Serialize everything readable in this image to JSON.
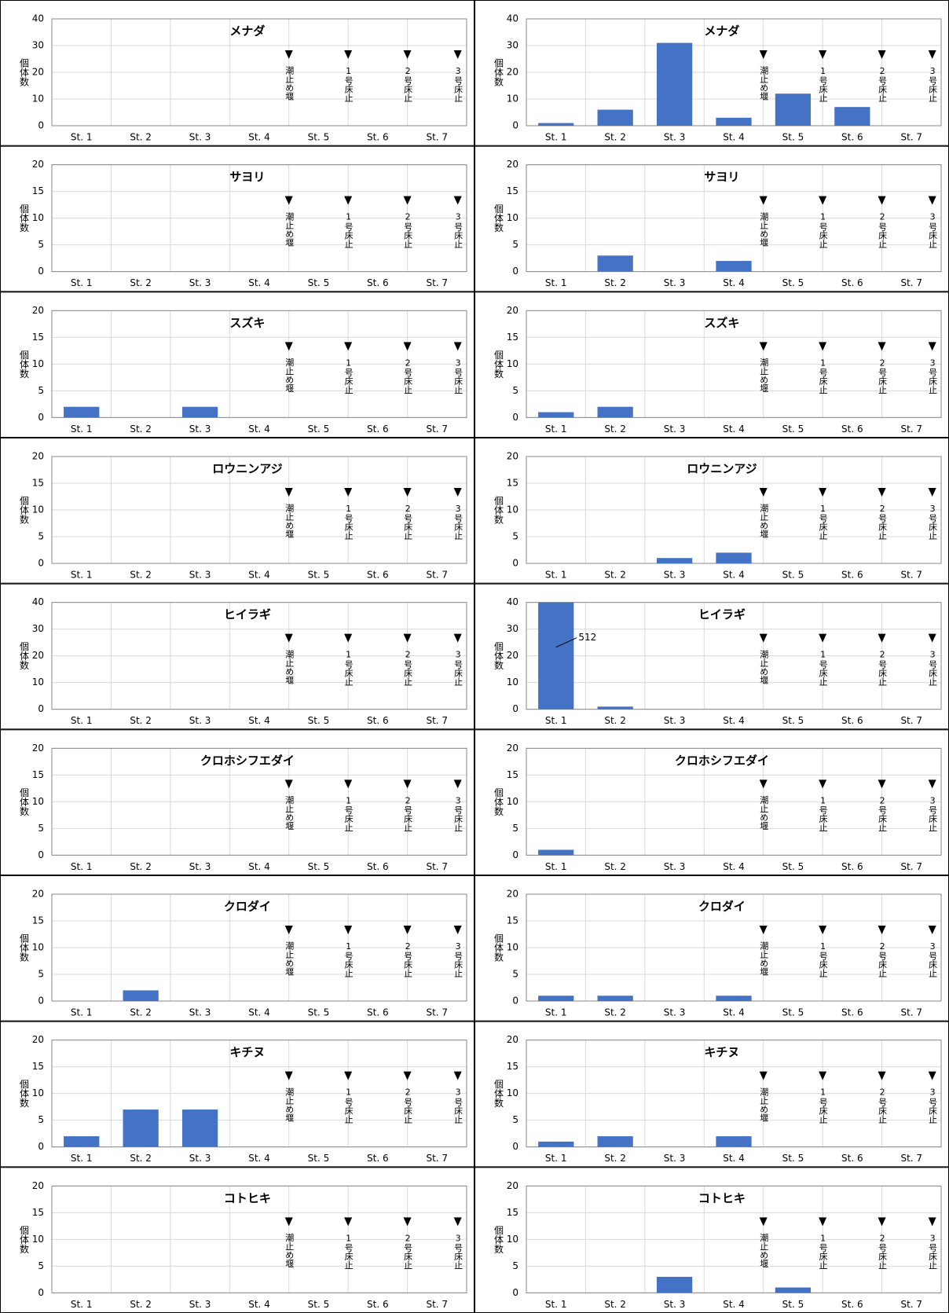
{
  "chart_data": [
    {
      "type": "bar",
      "title": "メナダ",
      "ylabel": "個体数",
      "categories": [
        "St. 1",
        "St. 2",
        "St. 3",
        "St. 4",
        "St. 5",
        "St. 6",
        "St. 7"
      ],
      "values": [
        0,
        0,
        0,
        0,
        0,
        0,
        0
      ],
      "ylim": [
        0,
        40
      ],
      "yticks": [
        0,
        10,
        20,
        30,
        40
      ],
      "color": "#4472c4",
      "grid": true,
      "annotations": [
        "潮止め堰",
        "1号床止",
        "2号床止",
        "3号床止"
      ]
    },
    {
      "type": "bar",
      "title": "サヨリ",
      "ylabel": "個体数",
      "categories": [
        "St. 1",
        "St. 2",
        "St. 3",
        "St. 4",
        "St. 5",
        "St. 6",
        "St. 7"
      ],
      "values": [
        0,
        0,
        0,
        0,
        0,
        0,
        0
      ],
      "ylim": [
        0,
        20
      ],
      "yticks": [
        0,
        5,
        10,
        15,
        20
      ],
      "color": "#4472c4",
      "grid": true,
      "annotations": [
        "潮止め堰",
        "1号床止",
        "2号床止",
        "3号床止"
      ]
    },
    {
      "type": "bar",
      "title": "スズキ",
      "ylabel": "個体数",
      "categories": [
        "St. 1",
        "St. 2",
        "St. 3",
        "St. 4",
        "St. 5",
        "St. 6",
        "St. 7"
      ],
      "values": [
        2,
        0,
        2,
        0,
        0,
        0,
        0
      ],
      "ylim": [
        0,
        20
      ],
      "yticks": [
        0,
        5,
        10,
        15,
        20
      ],
      "color": "#4472c4",
      "grid": true,
      "annotations": [
        "潮止め堰",
        "1号床止",
        "2号床止",
        "3号床止"
      ]
    },
    {
      "type": "bar",
      "title": "ロウニンアジ",
      "ylabel": "個体数",
      "categories": [
        "St. 1",
        "St. 2",
        "St. 3",
        "St. 4",
        "St. 5",
        "St. 6",
        "St. 7"
      ],
      "values": [
        0,
        0,
        0,
        0,
        0,
        0,
        0
      ],
      "ylim": [
        0,
        20
      ],
      "yticks": [
        0,
        5,
        10,
        15,
        20
      ],
      "color": "#4472c4",
      "grid": true,
      "annotations": [
        "潮止め堰",
        "1号床止",
        "2号床止",
        "3号床止"
      ]
    },
    {
      "type": "bar",
      "title": "ヒイラギ",
      "ylabel": "個体数",
      "categories": [
        "St. 1",
        "St. 2",
        "St. 3",
        "St. 4",
        "St. 5",
        "St. 6",
        "St. 7"
      ],
      "values": [
        0,
        0,
        0,
        0,
        0,
        0,
        0
      ],
      "ylim": [
        0,
        40
      ],
      "yticks": [
        0,
        10,
        20,
        30,
        40
      ],
      "color": "#4472c4",
      "grid": true,
      "annotations": [
        "潮止め堰",
        "1号床止",
        "2号床止",
        "3号床止"
      ]
    },
    {
      "type": "bar",
      "title": "クロホシフエダイ",
      "ylabel": "個体数",
      "categories": [
        "St. 1",
        "St. 2",
        "St. 3",
        "St. 4",
        "St. 5",
        "St. 6",
        "St. 7"
      ],
      "values": [
        0,
        0,
        0,
        0,
        0,
        0,
        0
      ],
      "ylim": [
        0,
        20
      ],
      "yticks": [
        0,
        5,
        10,
        15,
        20
      ],
      "color": "#4472c4",
      "grid": true,
      "annotations": [
        "潮止め堰",
        "1号床止",
        "2号床止",
        "3号床止"
      ]
    },
    {
      "type": "bar",
      "title": "クロダイ",
      "ylabel": "個体数",
      "categories": [
        "St. 1",
        "St. 2",
        "St. 3",
        "St. 4",
        "St. 5",
        "St. 6",
        "St. 7"
      ],
      "values": [
        0,
        2,
        0,
        0,
        0,
        0,
        0
      ],
      "ylim": [
        0,
        20
      ],
      "yticks": [
        0,
        5,
        10,
        15,
        20
      ],
      "color": "#4472c4",
      "grid": true,
      "annotations": [
        "潮止め堰",
        "1号床止",
        "2号床止",
        "3号床止"
      ]
    },
    {
      "type": "bar",
      "title": "キチヌ",
      "ylabel": "個体数",
      "categories": [
        "St. 1",
        "St. 2",
        "St. 3",
        "St. 4",
        "St. 5",
        "St. 6",
        "St. 7"
      ],
      "values": [
        2,
        7,
        7,
        0,
        0,
        0,
        0
      ],
      "ylim": [
        0,
        20
      ],
      "yticks": [
        0,
        5,
        10,
        15,
        20
      ],
      "color": "#4472c4",
      "grid": true,
      "annotations": [
        "潮止め堰",
        "1号床止",
        "2号床止",
        "3号床止"
      ]
    },
    {
      "type": "bar",
      "title": "コトヒキ",
      "ylabel": "個体数",
      "categories": [
        "St. 1",
        "St. 2",
        "St. 3",
        "St. 4",
        "St. 5",
        "St. 6",
        "St. 7"
      ],
      "values": [
        0,
        0,
        0,
        0,
        0,
        0,
        0
      ],
      "ylim": [
        0,
        20
      ],
      "yticks": [
        0,
        5,
        10,
        15,
        20
      ],
      "color": "#4472c4",
      "grid": true,
      "annotations": [
        "潮止め堰",
        "1号床止",
        "2号床止",
        "3号床止"
      ]
    },
    {
      "type": "bar",
      "title": "メナダ",
      "ylabel": "個体数",
      "categories": [
        "St. 1",
        "St. 2",
        "St. 3",
        "St. 4",
        "St. 5",
        "St. 6",
        "St. 7"
      ],
      "values": [
        1,
        6,
        31,
        3,
        12,
        7,
        0
      ],
      "ylim": [
        0,
        40
      ],
      "yticks": [
        0,
        10,
        20,
        30,
        40
      ],
      "color": "#4472c4",
      "grid": true,
      "annotations": [
        "潮止め堰",
        "1号床止",
        "2号床止",
        "3号床止"
      ]
    },
    {
      "type": "bar",
      "title": "サヨリ",
      "ylabel": "個体数",
      "categories": [
        "St. 1",
        "St. 2",
        "St. 3",
        "St. 4",
        "St. 5",
        "St. 6",
        "St. 7"
      ],
      "values": [
        0,
        3,
        0,
        2,
        0,
        0,
        0
      ],
      "ylim": [
        0,
        20
      ],
      "yticks": [
        0,
        5,
        10,
        15,
        20
      ],
      "color": "#4472c4",
      "grid": true,
      "annotations": [
        "潮止め堰",
        "1号床止",
        "2号床止",
        "3号床止"
      ]
    },
    {
      "type": "bar",
      "title": "スズキ",
      "ylabel": "個体数",
      "categories": [
        "St. 1",
        "St. 2",
        "St. 3",
        "St. 4",
        "St. 5",
        "St. 6",
        "St. 7"
      ],
      "values": [
        1,
        2,
        0,
        0,
        0,
        0,
        0
      ],
      "ylim": [
        0,
        20
      ],
      "yticks": [
        0,
        5,
        10,
        15,
        20
      ],
      "color": "#4472c4",
      "grid": true,
      "annotations": [
        "潮止め堰",
        "1号床止",
        "2号床止",
        "3号床止"
      ]
    },
    {
      "type": "bar",
      "title": "ロウニンアジ",
      "ylabel": "個体数",
      "categories": [
        "St. 1",
        "St. 2",
        "St. 3",
        "St. 4",
        "St. 5",
        "St. 6",
        "St. 7"
      ],
      "values": [
        0,
        0,
        1,
        2,
        0,
        0,
        0
      ],
      "ylim": [
        0,
        20
      ],
      "yticks": [
        0,
        5,
        10,
        15,
        20
      ],
      "color": "#4472c4",
      "grid": true,
      "annotations": [
        "潮止め堰",
        "1号床止",
        "2号床止",
        "3号床止"
      ]
    },
    {
      "type": "bar",
      "title": "ヒイラギ",
      "ylabel": "個体数",
      "categories": [
        "St. 1",
        "St. 2",
        "St. 3",
        "St. 4",
        "St. 5",
        "St. 6",
        "St. 7"
      ],
      "values": [
        512,
        1,
        0,
        0,
        0,
        0,
        0
      ],
      "value_labels": [
        "512",
        null,
        null,
        null,
        null,
        null,
        null
      ],
      "ylim": [
        0,
        40
      ],
      "yticks": [
        0,
        10,
        20,
        30,
        40
      ],
      "color": "#4472c4",
      "grid": true,
      "annotations": [
        "潮止め堰",
        "1号床止",
        "2号床止",
        "3号床止"
      ]
    },
    {
      "type": "bar",
      "title": "クロホシフエダイ",
      "ylabel": "個体数",
      "categories": [
        "St. 1",
        "St. 2",
        "St. 3",
        "St. 4",
        "St. 5",
        "St. 6",
        "St. 7"
      ],
      "values": [
        1,
        0,
        0,
        0,
        0,
        0,
        0
      ],
      "ylim": [
        0,
        20
      ],
      "yticks": [
        0,
        5,
        10,
        15,
        20
      ],
      "color": "#4472c4",
      "grid": true,
      "annotations": [
        "潮止め堰",
        "1号床止",
        "2号床止",
        "3号床止"
      ]
    },
    {
      "type": "bar",
      "title": "クロダイ",
      "ylabel": "個体数",
      "categories": [
        "St. 1",
        "St. 2",
        "St. 3",
        "St. 4",
        "St. 5",
        "St. 6",
        "St. 7"
      ],
      "values": [
        1,
        1,
        0,
        1,
        0,
        0,
        0
      ],
      "ylim": [
        0,
        20
      ],
      "yticks": [
        0,
        5,
        10,
        15,
        20
      ],
      "color": "#4472c4",
      "grid": true,
      "annotations": [
        "潮止め堰",
        "1号床止",
        "2号床止",
        "3号床止"
      ]
    },
    {
      "type": "bar",
      "title": "キチヌ",
      "ylabel": "個体数",
      "categories": [
        "St. 1",
        "St. 2",
        "St. 3",
        "St. 4",
        "St. 5",
        "St. 6",
        "St. 7"
      ],
      "values": [
        1,
        2,
        0,
        2,
        0,
        0,
        0
      ],
      "ylim": [
        0,
        20
      ],
      "yticks": [
        0,
        5,
        10,
        15,
        20
      ],
      "color": "#4472c4",
      "grid": true,
      "annotations": [
        "潮止め堰",
        "1号床止",
        "2号床止",
        "3号床止"
      ]
    },
    {
      "type": "bar",
      "title": "コトヒキ",
      "ylabel": "個体数",
      "categories": [
        "St. 1",
        "St. 2",
        "St. 3",
        "St. 4",
        "St. 5",
        "St. 6",
        "St. 7"
      ],
      "values": [
        0,
        0,
        3,
        0,
        1,
        0,
        0
      ],
      "ylim": [
        0,
        20
      ],
      "yticks": [
        0,
        5,
        10,
        15,
        20
      ],
      "color": "#4472c4",
      "grid": true,
      "annotations": [
        "潮止め堰",
        "1号床止",
        "2号床止",
        "3号床止"
      ]
    }
  ]
}
